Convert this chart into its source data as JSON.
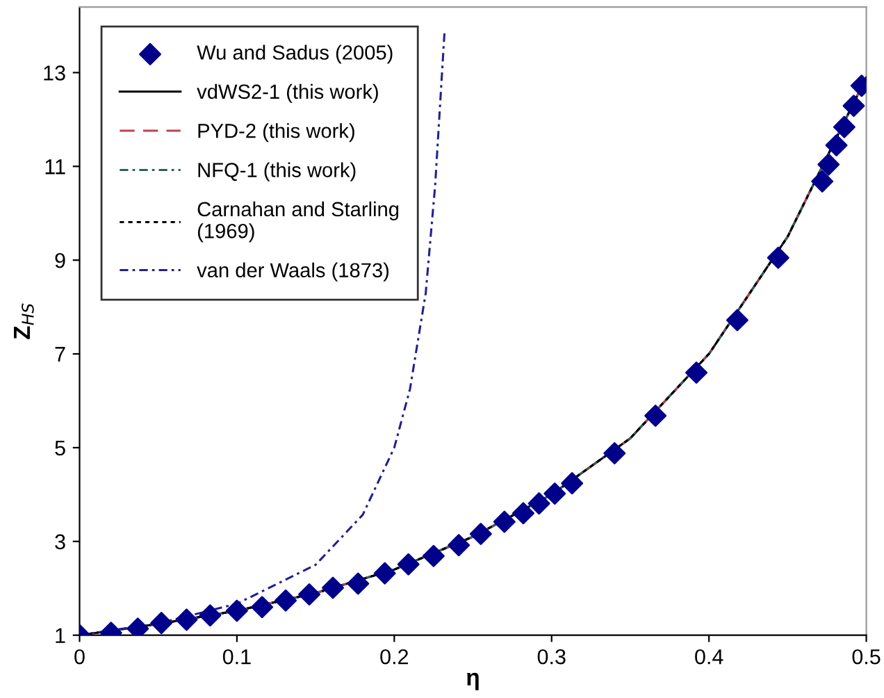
{
  "chart_data": {
    "type": "line",
    "xlabel": "η",
    "ylabel": "Z$_{HS}$",
    "xlim": [
      0,
      0.5
    ],
    "ylim": [
      1,
      14.4
    ],
    "xticks": [
      0,
      0.1,
      0.2,
      0.3,
      0.4,
      0.5
    ],
    "yticks": [
      1,
      3,
      5,
      7,
      9,
      11,
      13
    ],
    "grid": false,
    "legend": "top left",
    "series": [
      {
        "name": "Wu and Sadus (2005)",
        "type": "scatter",
        "marker": "diamond",
        "color": "#00008b",
        "x": [
          0,
          0.02,
          0.037,
          0.052,
          0.068,
          0.083,
          0.1,
          0.116,
          0.131,
          0.146,
          0.161,
          0.177,
          0.194,
          0.209,
          0.225,
          0.241,
          0.255,
          0.27,
          0.282,
          0.292,
          0.302,
          0.313,
          0.34,
          0.366,
          0.392,
          0.418,
          0.444,
          0.472,
          0.476,
          0.481,
          0.486,
          0.492,
          0.497
        ],
        "values": [
          1.0,
          1.05,
          1.14,
          1.26,
          1.33,
          1.42,
          1.52,
          1.6,
          1.74,
          1.87,
          2.01,
          2.1,
          2.32,
          2.51,
          2.69,
          2.92,
          3.16,
          3.42,
          3.6,
          3.81,
          4.02,
          4.24,
          4.88,
          5.68,
          6.6,
          7.72,
          9.05,
          10.68,
          11.04,
          11.45,
          11.84,
          12.29,
          12.72
        ]
      },
      {
        "name": "vdWS2-1 (this work)",
        "color": "#000000",
        "line_style": "solid",
        "x": [
          0,
          0.05,
          0.1,
          0.15,
          0.2,
          0.25,
          0.3,
          0.35,
          0.4,
          0.45,
          0.5
        ],
        "values": [
          1,
          1.24,
          1.52,
          1.9,
          2.4,
          3.1,
          4.0,
          5.2,
          7.0,
          9.5,
          12.9
        ]
      },
      {
        "name": "PYD-2 (this work)",
        "color": "#c04050",
        "line_style": "dashed",
        "x": [
          0,
          0.05,
          0.1,
          0.15,
          0.2,
          0.25,
          0.3,
          0.35,
          0.4,
          0.45,
          0.5
        ],
        "values": [
          1,
          1.24,
          1.52,
          1.9,
          2.4,
          3.1,
          4.0,
          5.2,
          7.0,
          9.5,
          12.9
        ]
      },
      {
        "name": "NFQ-1 (this work)",
        "color": "#2f5f5f",
        "line_style": "dashdot",
        "x": [
          0,
          0.05,
          0.1,
          0.15,
          0.2,
          0.25,
          0.3,
          0.35,
          0.4,
          0.45,
          0.5
        ],
        "values": [
          1,
          1.24,
          1.52,
          1.9,
          2.4,
          3.1,
          4.0,
          5.2,
          7.0,
          9.5,
          12.9
        ]
      },
      {
        "name": "Carnahan and Starling\n(1969)",
        "color": "#000000",
        "line_style": "dotted",
        "x": [
          0,
          0.05,
          0.1,
          0.15,
          0.2,
          0.25,
          0.3,
          0.35,
          0.4,
          0.45,
          0.5
        ],
        "values": [
          1,
          1.24,
          1.52,
          1.9,
          2.4,
          3.1,
          4.0,
          5.2,
          7.0,
          9.5,
          12.9
        ]
      },
      {
        "name": "van der Waals (1873)",
        "color": "#202090",
        "line_style": "dashdot",
        "x": [
          0,
          0.05,
          0.1,
          0.15,
          0.18,
          0.2,
          0.21,
          0.22,
          0.226,
          0.232
        ],
        "values": [
          1,
          1.25,
          1.67,
          2.5,
          3.57,
          5,
          6.25,
          8.3,
          10.6,
          13.9
        ]
      }
    ]
  }
}
